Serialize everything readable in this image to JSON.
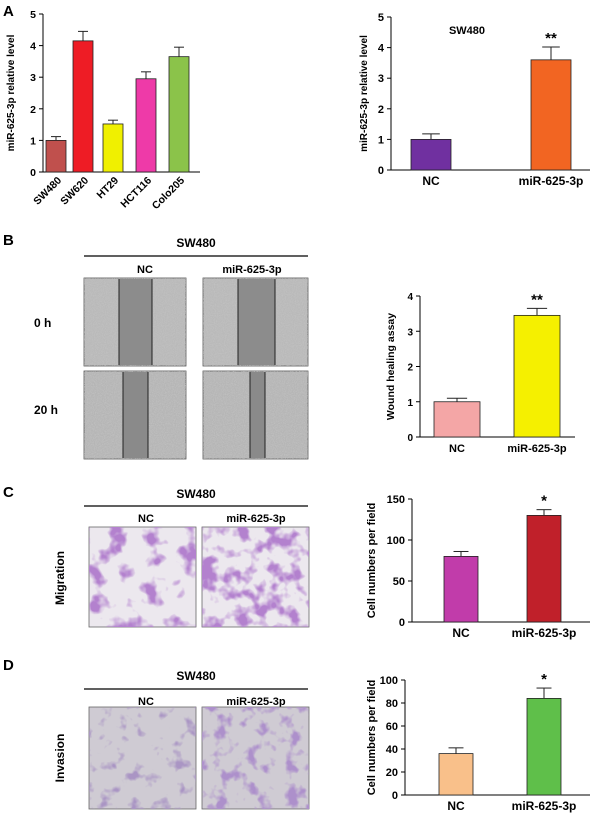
{
  "figure": {
    "panel_labels": [
      "A",
      "B",
      "C",
      "D"
    ],
    "headers": {
      "b": "SW480",
      "c": "SW480",
      "d": "SW480"
    },
    "image_labels": {
      "b_nc": "NC",
      "b_mir": "miR-625-3p",
      "b_row1": "0 h",
      "b_row2": "20 h",
      "c_nc": "NC",
      "c_mir": "miR-625-3p",
      "c_side": "Migration",
      "d_nc": "NC",
      "d_mir": "miR-625-3p",
      "d_side": "Invasion"
    }
  },
  "chart_data": [
    {
      "id": "A1",
      "type": "bar",
      "title": "",
      "xlabel": "",
      "ylabel": "miR-625-3p relative level",
      "categories": [
        "SW480",
        "SW620",
        "HT29",
        "HCT116",
        "Colo205"
      ],
      "values": [
        1.0,
        4.15,
        1.52,
        2.95,
        3.65
      ],
      "errors": [
        0.12,
        0.3,
        0.12,
        0.22,
        0.3
      ],
      "colors": [
        "#c0504d",
        "#ee1c25",
        "#f0f000",
        "#ee3aa8",
        "#8bc34a"
      ],
      "ylim": [
        0,
        5
      ],
      "yticks": [
        0,
        1,
        2,
        3,
        4,
        5
      ],
      "tick_labels": [
        "0",
        "1",
        "2",
        "3",
        "4",
        "5"
      ],
      "x_labels_rotated": true,
      "annotations": []
    },
    {
      "id": "A2",
      "type": "bar",
      "title": "SW480",
      "xlabel": "",
      "ylabel": "miR-625-3p relative level",
      "categories": [
        "NC",
        "miR-625-3p"
      ],
      "values": [
        1.0,
        3.6
      ],
      "errors": [
        0.18,
        0.42
      ],
      "colors": [
        "#7030a0",
        "#f26522"
      ],
      "ylim": [
        0,
        5
      ],
      "yticks": [
        0,
        1,
        2,
        3,
        4,
        5
      ],
      "tick_labels": [
        "0",
        "1",
        "2",
        "3",
        "4",
        "5"
      ],
      "annotations": [
        "",
        "**"
      ]
    },
    {
      "id": "B",
      "type": "bar",
      "title": "",
      "xlabel": "",
      "ylabel": "Wound healing assay",
      "categories": [
        "NC",
        "miR-625-3p"
      ],
      "values": [
        1.0,
        3.45
      ],
      "errors": [
        0.1,
        0.2
      ],
      "colors": [
        "#f4a6a6",
        "#f5f000"
      ],
      "ylim": [
        0,
        4
      ],
      "yticks": [
        0,
        1,
        2,
        3,
        4
      ],
      "tick_labels": [
        "0",
        "1",
        "2",
        "3",
        "4"
      ],
      "annotations": [
        "",
        "**"
      ]
    },
    {
      "id": "C",
      "type": "bar",
      "title": "",
      "xlabel": "",
      "ylabel": "Cell numbers per field",
      "categories": [
        "NC",
        "miR-625-3p"
      ],
      "values": [
        80,
        130
      ],
      "errors": [
        6,
        7
      ],
      "colors": [
        "#c13caa",
        "#c0202a"
      ],
      "ylim": [
        0,
        150
      ],
      "yticks": [
        0,
        50,
        100,
        150
      ],
      "tick_labels": [
        "0",
        "50",
        "100",
        "150"
      ],
      "annotations": [
        "",
        "*"
      ]
    },
    {
      "id": "D",
      "type": "bar",
      "title": "",
      "xlabel": "",
      "ylabel": "Cell numbers per field",
      "categories": [
        "NC",
        "miR-625-3p"
      ],
      "values": [
        36,
        84
      ],
      "errors": [
        5,
        9
      ],
      "colors": [
        "#f9c08a",
        "#5fbf4a"
      ],
      "ylim": [
        0,
        100
      ],
      "yticks": [
        0,
        20,
        40,
        60,
        80,
        100
      ],
      "tick_labels": [
        "0",
        "20",
        "40",
        "60",
        "80",
        "100"
      ],
      "annotations": [
        "",
        "*"
      ]
    }
  ]
}
